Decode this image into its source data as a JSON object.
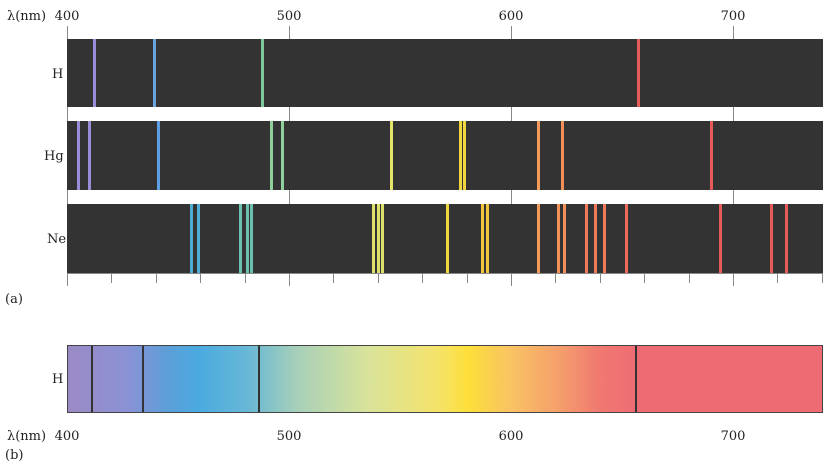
{
  "axis": {
    "prefix": "λ(nm)",
    "ticks": [
      {
        "value": 400,
        "label": "400"
      },
      {
        "value": 500,
        "label": "500"
      },
      {
        "value": 600,
        "label": "600"
      },
      {
        "value": 700,
        "label": "700"
      }
    ],
    "range": [
      400,
      741
    ]
  },
  "panel_a": {
    "label": "(a)",
    "spectra": [
      {
        "name": "H",
        "lines": [
          {
            "nm": 412,
            "color": "#9a8ed8"
          },
          {
            "nm": 439,
            "color": "#6aa2e0"
          },
          {
            "nm": 488,
            "color": "#7fc89a"
          },
          {
            "nm": 657,
            "color": "#e65a5a"
          }
        ]
      },
      {
        "name": "Hg",
        "lines": [
          {
            "nm": 405,
            "color": "#9a8ed8"
          },
          {
            "nm": 410,
            "color": "#9a8ed8"
          },
          {
            "nm": 441,
            "color": "#5f9fe4"
          },
          {
            "nm": 492,
            "color": "#8fd09a"
          },
          {
            "nm": 497,
            "color": "#8fd09a"
          },
          {
            "nm": 546,
            "color": "#e6e36a"
          },
          {
            "nm": 577,
            "color": "#f2d63e"
          },
          {
            "nm": 579,
            "color": "#f2d63e"
          },
          {
            "nm": 612,
            "color": "#f49a5a"
          },
          {
            "nm": 623,
            "color": "#f29058"
          },
          {
            "nm": 690,
            "color": "#e65a5a"
          }
        ]
      },
      {
        "name": "Ne",
        "lines": [
          {
            "nm": 456,
            "color": "#4eaed8"
          },
          {
            "nm": 459,
            "color": "#4eaed8"
          },
          {
            "nm": 478,
            "color": "#6cc0b0"
          },
          {
            "nm": 481,
            "color": "#6cc0b0"
          },
          {
            "nm": 483,
            "color": "#6cc0b0"
          },
          {
            "nm": 538,
            "color": "#dde06a"
          },
          {
            "nm": 540,
            "color": "#dde06a"
          },
          {
            "nm": 542,
            "color": "#dde06a"
          },
          {
            "nm": 571,
            "color": "#f2d63e"
          },
          {
            "nm": 587,
            "color": "#f2c53e"
          },
          {
            "nm": 589,
            "color": "#f2c53e"
          },
          {
            "nm": 612,
            "color": "#f49a5a"
          },
          {
            "nm": 621,
            "color": "#f29058"
          },
          {
            "nm": 624,
            "color": "#f29058"
          },
          {
            "nm": 634,
            "color": "#f27a5a"
          },
          {
            "nm": 638,
            "color": "#f27a5a"
          },
          {
            "nm": 642,
            "color": "#f27a5a"
          },
          {
            "nm": 652,
            "color": "#ec6a5a"
          },
          {
            "nm": 694,
            "color": "#e65a5a"
          },
          {
            "nm": 717,
            "color": "#e65a5a"
          },
          {
            "nm": 724,
            "color": "#e65a5a"
          }
        ]
      }
    ]
  },
  "panel_b": {
    "label": "(b)",
    "name": "H",
    "absorption_lines_nm": [
      411,
      434,
      486,
      656
    ]
  }
}
